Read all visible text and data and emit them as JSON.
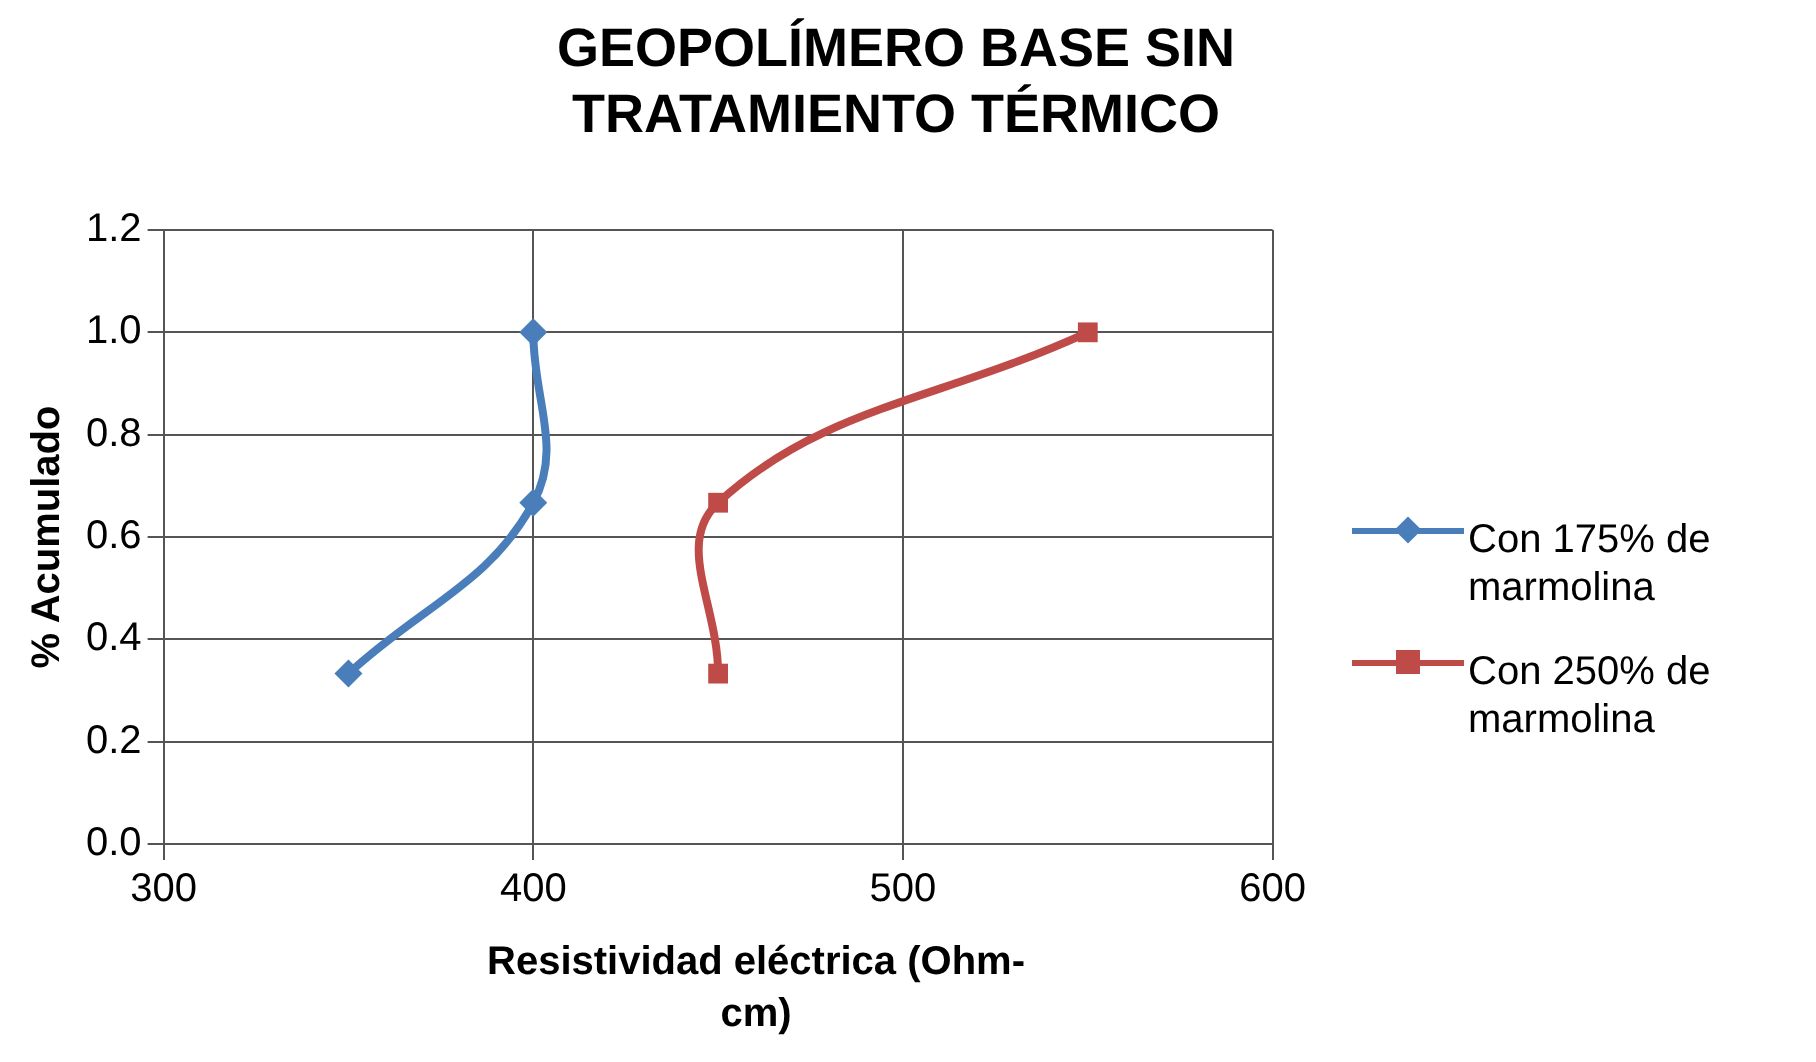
{
  "chart_data": {
    "type": "line",
    "title": "GEOPOLÍMERO BASE SIN TRATAMIENTO TÉRMICO",
    "xlabel": "Resistividad eléctrica (Ohm-cm)",
    "ylabel": "% Acumulado",
    "series": [
      {
        "name": "Con 175% de marmolina",
        "color": "#4a7ebb",
        "marker": "diamond",
        "x": [
          350,
          400,
          400
        ],
        "values": [
          0.333,
          0.667,
          1.0
        ]
      },
      {
        "name": "Con 250% de marmolina",
        "color": "#be4b48",
        "marker": "square",
        "x": [
          450,
          450,
          550
        ],
        "values": [
          0.333,
          0.667,
          1.0
        ]
      }
    ],
    "xlim": [
      300,
      600
    ],
    "xticks": [
      {
        "value": 300,
        "label": "300"
      },
      {
        "value": 400,
        "label": "400"
      },
      {
        "value": 500,
        "label": "500"
      },
      {
        "value": 600,
        "label": "600"
      }
    ],
    "ylim": [
      0,
      1.2
    ],
    "yticks": [
      {
        "value": 0,
        "label": "0.0"
      },
      {
        "value": 0.2,
        "label": "0.2"
      },
      {
        "value": 0.4,
        "label": "0.4"
      },
      {
        "value": 0.6,
        "label": "0.6"
      },
      {
        "value": 0.8,
        "label": "0.8"
      },
      {
        "value": 1.0,
        "label": "1.0"
      },
      {
        "value": 1.2,
        "label": "1.2"
      }
    ],
    "grid": true,
    "legend": "right",
    "line_style": "solid"
  }
}
